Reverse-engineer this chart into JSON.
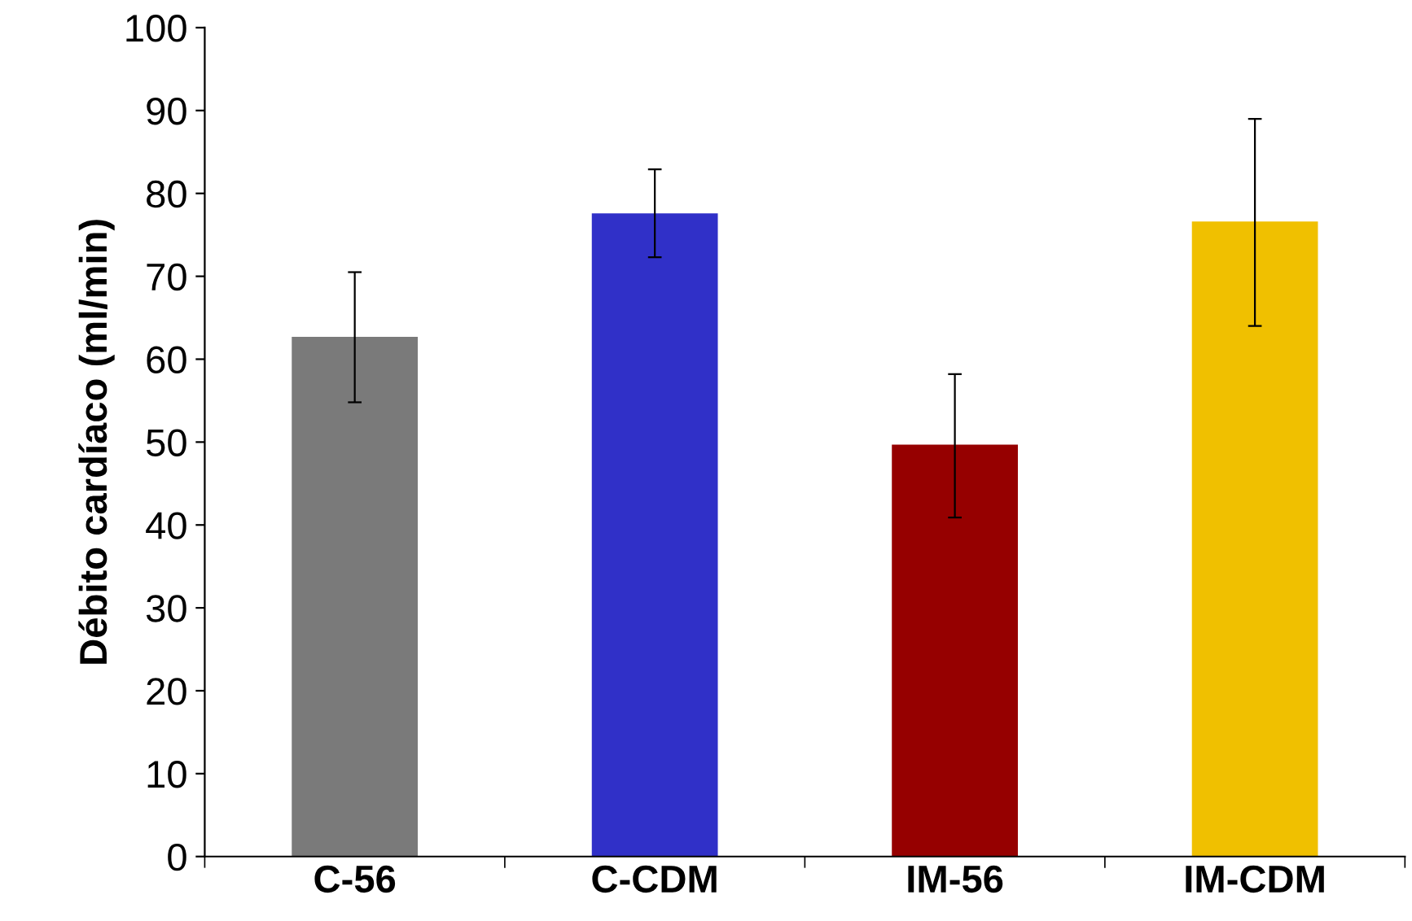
{
  "chart_data": {
    "type": "bar",
    "ylabel": "Débito cardíaco (ml/min)",
    "categories": [
      "C-56",
      "C-CDM",
      "IM-56",
      "IM-CDM"
    ],
    "values": [
      62.7,
      77.6,
      49.7,
      76.6
    ],
    "colors": [
      "#7a7a7a",
      "#3030c8",
      "#960000",
      "#f0c000"
    ],
    "errors": [
      [
        54.8,
        70.5
      ],
      [
        72.3,
        82.9
      ],
      [
        40.9,
        58.2
      ],
      [
        64.0,
        89.0
      ]
    ],
    "ylim": [
      0,
      100
    ],
    "yticks": [
      0,
      10,
      20,
      30,
      40,
      50,
      60,
      70,
      80,
      90,
      100
    ],
    "grid": false
  }
}
